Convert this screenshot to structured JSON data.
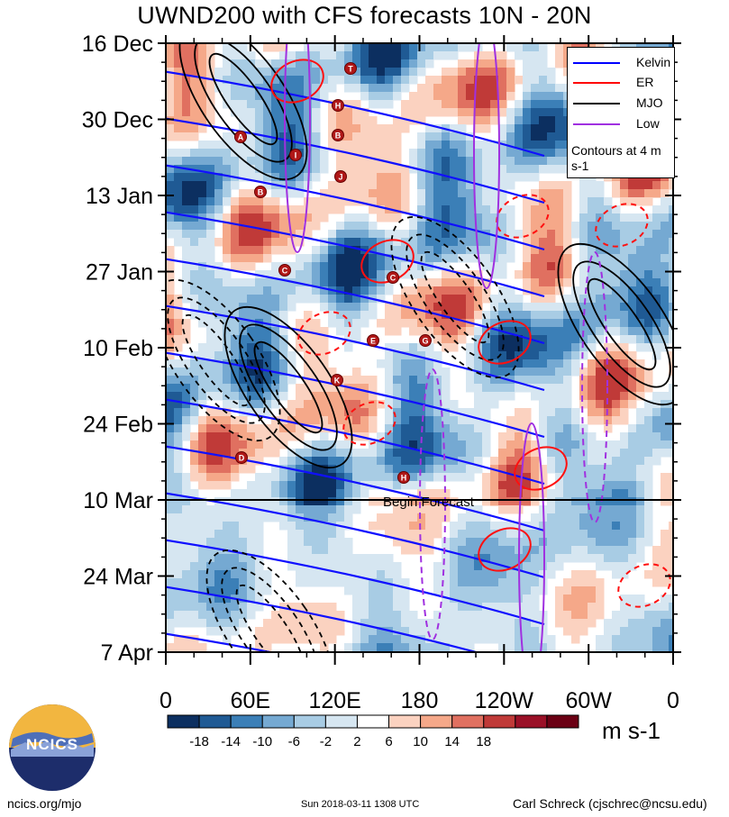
{
  "chart_data": {
    "type": "heatmap",
    "title": "UWND200 with CFS forecasts  10N - 20N",
    "y_tick_labels": [
      "16 Dec",
      "30 Dec",
      "13 Jan",
      "27 Jan",
      "10 Feb",
      "24 Feb",
      "10 Mar",
      "24 Mar",
      "7 Apr"
    ],
    "x_tick_labels": [
      "0",
      "60E",
      "120E",
      "180",
      "120W",
      "60W",
      "0"
    ],
    "xlim": [
      0,
      360
    ],
    "forecast_line_date": "10 Mar",
    "forecast_label": "Begin Forecast",
    "colorbar": {
      "labels": [
        "-18",
        "-14",
        "-10",
        "-6",
        "-2",
        "2",
        "6",
        "10",
        "14",
        "18"
      ],
      "colors": [
        "#0c2f60",
        "#1f5a94",
        "#3b7fb7",
        "#75a9d2",
        "#a8cce4",
        "#d6e6f1",
        "#ffffff",
        "#fbd2c0",
        "#f5a889",
        "#e07060",
        "#c03a38",
        "#9a1027",
        "#6b0014"
      ],
      "units": "m s-1"
    },
    "legend": [
      {
        "name": "Kelvin",
        "color": "#0000ff"
      },
      {
        "name": "ER",
        "color": "#ff0000"
      },
      {
        "name": "MJO",
        "color": "#000000"
      },
      {
        "name": "Low",
        "color": "#a030e0"
      }
    ],
    "legend_note": "Contours at 4 m s-1",
    "markers": [
      "T",
      "H",
      "A",
      "I",
      "B",
      "J",
      "B",
      "C",
      "C",
      "E",
      "G",
      "K",
      "D",
      "H"
    ],
    "grid": false,
    "legend_position": "top-right"
  },
  "footer": {
    "left": "ncics.org/mjo",
    "center": "Sun 2018-03-11 1308 UTC",
    "right": "Carl Schreck (cjschrec@ncsu.edu)"
  },
  "logo": {
    "text": "NCICS"
  }
}
